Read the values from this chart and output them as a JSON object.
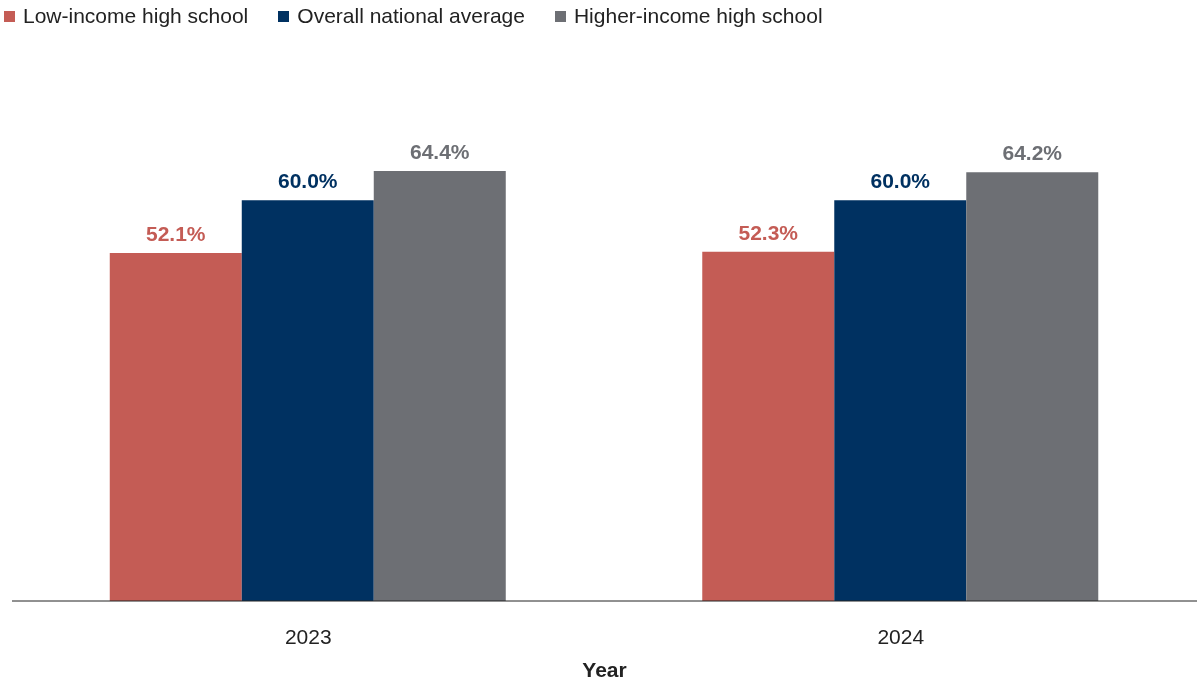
{
  "chart_data": {
    "type": "bar",
    "xlabel": "Year",
    "categories": [
      "2023",
      "2024"
    ],
    "series": [
      {
        "name": "Low-income high school",
        "color": "#c45c55",
        "values": [
          52.1,
          52.3
        ],
        "value_labels": [
          "52.1%",
          "52.3%"
        ]
      },
      {
        "name": "Overall national average",
        "color": "#003161",
        "values": [
          60.0,
          60.0
        ],
        "value_labels": [
          "60.0%",
          "60.0%"
        ]
      },
      {
        "name": "Higher-income high school",
        "color": "#6d6f74",
        "values": [
          64.4,
          64.2
        ],
        "value_labels": [
          "64.4%",
          "64.2%"
        ]
      }
    ],
    "legend": "top left"
  }
}
